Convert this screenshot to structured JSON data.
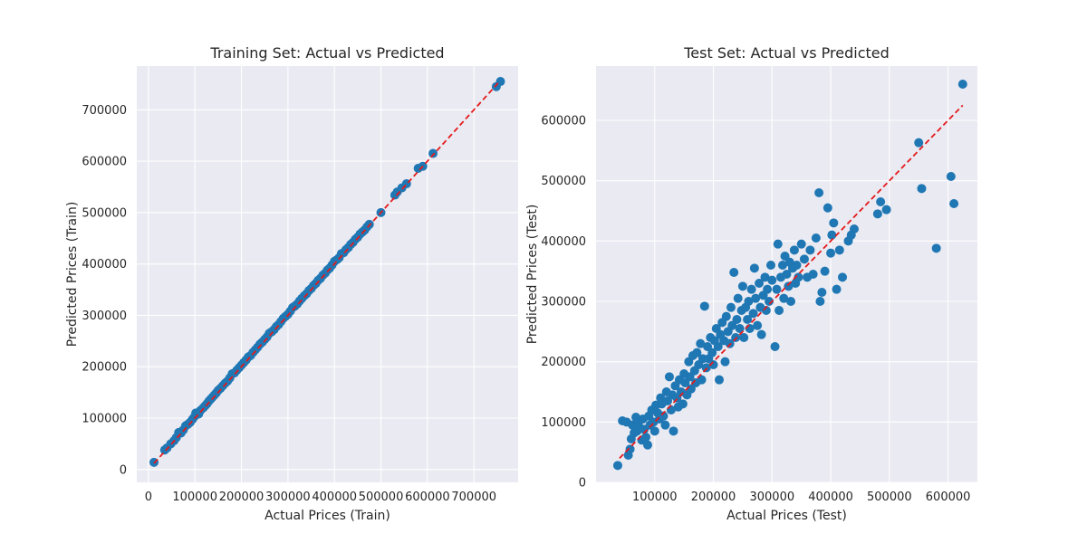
{
  "chart_data": [
    {
      "type": "scatter",
      "title": "Training Set: Actual vs Predicted",
      "xlabel": "Actual Prices (Train)",
      "ylabel": "Predicted Prices (Train)",
      "xlim": [
        -25000,
        795000
      ],
      "ylim": [
        -25000,
        785000
      ],
      "xticks": [
        0,
        100000,
        200000,
        300000,
        400000,
        500000,
        600000,
        700000
      ],
      "xtick_labels": [
        "0",
        "100000",
        "200000",
        "300000",
        "400000",
        "500000",
        "600000",
        "700000"
      ],
      "yticks": [
        0,
        100000,
        200000,
        300000,
        400000,
        500000,
        600000,
        700000
      ],
      "ytick_labels": [
        "0",
        "100000",
        "200000",
        "300000",
        "400000",
        "500000",
        "600000",
        "700000"
      ],
      "grid": true,
      "legend": "none",
      "point_color": "#1f77b4",
      "reference_line": {
        "from": [
          12000,
          12000
        ],
        "to": [
          755000,
          755000
        ],
        "color": "#e41a1c",
        "style": "dashed"
      },
      "points": [
        [
          12000,
          14000
        ],
        [
          35000,
          38000
        ],
        [
          40000,
          42000
        ],
        [
          48000,
          50000
        ],
        [
          55000,
          56000
        ],
        [
          60000,
          62000
        ],
        [
          65000,
          72000
        ],
        [
          70000,
          71000
        ],
        [
          75000,
          77000
        ],
        [
          80000,
          85000
        ],
        [
          85000,
          88000
        ],
        [
          90000,
          92000
        ],
        [
          95000,
          98000
        ],
        [
          100000,
          104000
        ],
        [
          102000,
          110000
        ],
        [
          108000,
          108000
        ],
        [
          112000,
          115000
        ],
        [
          118000,
          120000
        ],
        [
          122000,
          124000
        ],
        [
          126000,
          128000
        ],
        [
          130000,
          133000
        ],
        [
          134000,
          137000
        ],
        [
          138000,
          141000
        ],
        [
          142000,
          145000
        ],
        [
          146000,
          149000
        ],
        [
          150000,
          154000
        ],
        [
          155000,
          158000
        ],
        [
          160000,
          163000
        ],
        [
          165000,
          168000
        ],
        [
          170000,
          172000
        ],
        [
          175000,
          178000
        ],
        [
          180000,
          186000
        ],
        [
          185000,
          188000
        ],
        [
          190000,
          193000
        ],
        [
          195000,
          198000
        ],
        [
          200000,
          203000
        ],
        [
          205000,
          208000
        ],
        [
          210000,
          213000
        ],
        [
          215000,
          219000
        ],
        [
          220000,
          222000
        ],
        [
          225000,
          228000
        ],
        [
          230000,
          233000
        ],
        [
          235000,
          238000
        ],
        [
          240000,
          244000
        ],
        [
          245000,
          248000
        ],
        [
          250000,
          253000
        ],
        [
          255000,
          258000
        ],
        [
          260000,
          265000
        ],
        [
          265000,
          268000
        ],
        [
          270000,
          272000
        ],
        [
          275000,
          278000
        ],
        [
          280000,
          282000
        ],
        [
          285000,
          288000
        ],
        [
          290000,
          294000
        ],
        [
          295000,
          298000
        ],
        [
          300000,
          302000
        ],
        [
          305000,
          308000
        ],
        [
          310000,
          315000
        ],
        [
          315000,
          318000
        ],
        [
          320000,
          322000
        ],
        [
          325000,
          328000
        ],
        [
          330000,
          333000
        ],
        [
          335000,
          338000
        ],
        [
          340000,
          342000
        ],
        [
          345000,
          348000
        ],
        [
          350000,
          352000
        ],
        [
          355000,
          358000
        ],
        [
          360000,
          362000
        ],
        [
          365000,
          368000
        ],
        [
          370000,
          372000
        ],
        [
          375000,
          378000
        ],
        [
          380000,
          382000
        ],
        [
          385000,
          388000
        ],
        [
          390000,
          392000
        ],
        [
          395000,
          398000
        ],
        [
          400000,
          405000
        ],
        [
          405000,
          408000
        ],
        [
          410000,
          412000
        ],
        [
          415000,
          420000
        ],
        [
          420000,
          422000
        ],
        [
          425000,
          428000
        ],
        [
          430000,
          432000
        ],
        [
          435000,
          438000
        ],
        [
          440000,
          442000
        ],
        [
          445000,
          448000
        ],
        [
          450000,
          452000
        ],
        [
          455000,
          458000
        ],
        [
          460000,
          462000
        ],
        [
          465000,
          466000
        ],
        [
          470000,
          472000
        ],
        [
          475000,
          477000
        ],
        [
          500000,
          500000
        ],
        [
          530000,
          534000
        ],
        [
          535000,
          540000
        ],
        [
          545000,
          548000
        ],
        [
          555000,
          556000
        ],
        [
          580000,
          586000
        ],
        [
          590000,
          590000
        ],
        [
          612000,
          615000
        ],
        [
          748000,
          745000
        ],
        [
          757000,
          755000
        ]
      ]
    },
    {
      "type": "scatter",
      "title": "Test Set: Actual vs Predicted",
      "xlabel": "Actual Prices (Test)",
      "ylabel": "Predicted Prices (Test)",
      "xlim": [
        0,
        650000
      ],
      "ylim": [
        0,
        690000
      ],
      "xticks": [
        100000,
        200000,
        300000,
        400000,
        500000,
        600000
      ],
      "xtick_labels": [
        "100000",
        "200000",
        "300000",
        "400000",
        "500000",
        "600000"
      ],
      "yticks": [
        0,
        100000,
        200000,
        300000,
        400000,
        500000,
        600000
      ],
      "ytick_labels": [
        "0",
        "100000",
        "200000",
        "300000",
        "400000",
        "500000",
        "600000"
      ],
      "grid": true,
      "legend": "none",
      "point_color": "#1f77b4",
      "reference_line": {
        "from": [
          40000,
          40000
        ],
        "to": [
          625000,
          625000
        ],
        "color": "#e41a1c",
        "style": "dashed"
      },
      "points": [
        [
          37000,
          28000
        ],
        [
          45000,
          102000
        ],
        [
          52000,
          100000
        ],
        [
          55000,
          45000
        ],
        [
          58000,
          55000
        ],
        [
          60000,
          72000
        ],
        [
          62000,
          95000
        ],
        [
          65000,
          82000
        ],
        [
          68000,
          108000
        ],
        [
          70000,
          85000
        ],
        [
          72000,
          98000
        ],
        [
          75000,
          90000
        ],
        [
          78000,
          70000
        ],
        [
          80000,
          105000
        ],
        [
          82000,
          88000
        ],
        [
          85000,
          75000
        ],
        [
          88000,
          62000
        ],
        [
          90000,
          110000
        ],
        [
          92000,
          95000
        ],
        [
          95000,
          120000
        ],
        [
          98000,
          100000
        ],
        [
          100000,
          85000
        ],
        [
          102000,
          128000
        ],
        [
          105000,
          115000
        ],
        [
          108000,
          105000
        ],
        [
          110000,
          140000
        ],
        [
          112000,
          130000
        ],
        [
          115000,
          110000
        ],
        [
          118000,
          95000
        ],
        [
          120000,
          150000
        ],
        [
          122000,
          135000
        ],
        [
          125000,
          175000
        ],
        [
          128000,
          120000
        ],
        [
          130000,
          145000
        ],
        [
          132000,
          85000
        ],
        [
          135000,
          160000
        ],
        [
          138000,
          140000
        ],
        [
          140000,
          125000
        ],
        [
          142000,
          170000
        ],
        [
          145000,
          150000
        ],
        [
          148000,
          130000
        ],
        [
          150000,
          180000
        ],
        [
          152000,
          165000
        ],
        [
          155000,
          145000
        ],
        [
          158000,
          200000
        ],
        [
          160000,
          175000
        ],
        [
          162000,
          155000
        ],
        [
          165000,
          210000
        ],
        [
          168000,
          185000
        ],
        [
          170000,
          165000
        ],
        [
          172000,
          215000
        ],
        [
          175000,
          195000
        ],
        [
          178000,
          230000
        ],
        [
          180000,
          170000
        ],
        [
          182000,
          205000
        ],
        [
          185000,
          292000
        ],
        [
          188000,
          190000
        ],
        [
          190000,
          225000
        ],
        [
          192000,
          205000
        ],
        [
          195000,
          240000
        ],
        [
          198000,
          215000
        ],
        [
          200000,
          195000
        ],
        [
          202000,
          235000
        ],
        [
          205000,
          255000
        ],
        [
          208000,
          225000
        ],
        [
          210000,
          170000
        ],
        [
          212000,
          245000
        ],
        [
          215000,
          265000
        ],
        [
          218000,
          235000
        ],
        [
          220000,
          200000
        ],
        [
          222000,
          275000
        ],
        [
          225000,
          250000
        ],
        [
          228000,
          230000
        ],
        [
          230000,
          290000
        ],
        [
          232000,
          260000
        ],
        [
          235000,
          348000
        ],
        [
          238000,
          240000
        ],
        [
          240000,
          270000
        ],
        [
          242000,
          305000
        ],
        [
          245000,
          255000
        ],
        [
          248000,
          285000
        ],
        [
          250000,
          325000
        ],
        [
          252000,
          240000
        ],
        [
          255000,
          290000
        ],
        [
          258000,
          270000
        ],
        [
          260000,
          300000
        ],
        [
          262000,
          255000
        ],
        [
          265000,
          320000
        ],
        [
          268000,
          280000
        ],
        [
          270000,
          355000
        ],
        [
          272000,
          305000
        ],
        [
          275000,
          260000
        ],
        [
          278000,
          330000
        ],
        [
          280000,
          290000
        ],
        [
          282000,
          245000
        ],
        [
          285000,
          310000
        ],
        [
          288000,
          340000
        ],
        [
          290000,
          285000
        ],
        [
          292000,
          320000
        ],
        [
          295000,
          300000
        ],
        [
          298000,
          360000
        ],
        [
          300000,
          335000
        ],
        [
          305000,
          225000
        ],
        [
          308000,
          320000
        ],
        [
          310000,
          395000
        ],
        [
          312000,
          285000
        ],
        [
          315000,
          340000
        ],
        [
          318000,
          360000
        ],
        [
          320000,
          305000
        ],
        [
          322000,
          375000
        ],
        [
          325000,
          345000
        ],
        [
          328000,
          325000
        ],
        [
          330000,
          365000
        ],
        [
          332000,
          300000
        ],
        [
          335000,
          355000
        ],
        [
          338000,
          385000
        ],
        [
          340000,
          330000
        ],
        [
          342000,
          360000
        ],
        [
          345000,
          340000
        ],
        [
          350000,
          395000
        ],
        [
          355000,
          370000
        ],
        [
          360000,
          340000
        ],
        [
          365000,
          385000
        ],
        [
          370000,
          345000
        ],
        [
          375000,
          405000
        ],
        [
          380000,
          480000
        ],
        [
          382000,
          300000
        ],
        [
          385000,
          315000
        ],
        [
          390000,
          350000
        ],
        [
          395000,
          455000
        ],
        [
          400000,
          380000
        ],
        [
          402000,
          410000
        ],
        [
          405000,
          430000
        ],
        [
          410000,
          320000
        ],
        [
          415000,
          385000
        ],
        [
          420000,
          340000
        ],
        [
          430000,
          400000
        ],
        [
          435000,
          410000
        ],
        [
          440000,
          420000
        ],
        [
          480000,
          445000
        ],
        [
          485000,
          465000
        ],
        [
          495000,
          452000
        ],
        [
          550000,
          563000
        ],
        [
          555000,
          487000
        ],
        [
          580000,
          388000
        ],
        [
          605000,
          507000
        ],
        [
          610000,
          462000
        ],
        [
          625000,
          660000
        ]
      ]
    }
  ]
}
